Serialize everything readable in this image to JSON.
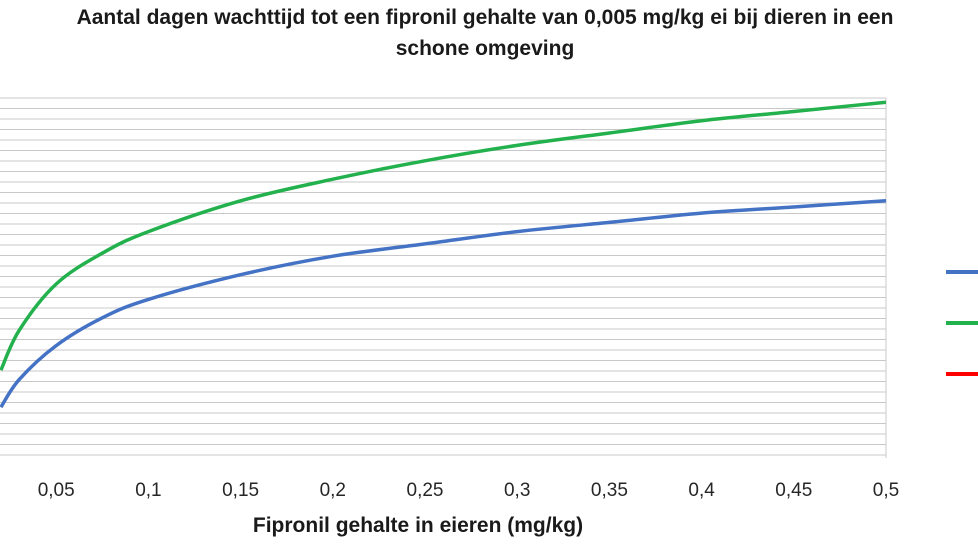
{
  "chart_data": {
    "type": "line",
    "title_line1": "Aantal dagen wachttijd tot een fipronil gehalte van 0,005 mg/kg ei bij dieren in een",
    "title_line2": "schone omgeving",
    "xlabel": "Fipronil gehalte in eieren (mg/kg)",
    "ylabel": "",
    "x_ticks": [
      "0,05",
      "0,1",
      "0,15",
      "0,2",
      "0,25",
      "0,3",
      "0,35",
      "0,4",
      "0,45",
      "0,5"
    ],
    "xlim": [
      0,
      0.5
    ],
    "grid": true,
    "legend_position": "right",
    "series": [
      {
        "color": "#4472c4",
        "x": [
          0.02,
          0.03,
          0.05,
          0.075,
          0.1,
          0.15,
          0.2,
          0.25,
          0.3,
          0.35,
          0.4,
          0.45,
          0.5
        ],
        "y": [
          0.23,
          0.32,
          0.43,
          0.52,
          0.58,
          0.66,
          0.72,
          0.76,
          0.8,
          0.83,
          0.86,
          0.88,
          0.9
        ]
      },
      {
        "color": "#22b14c",
        "x": [
          0.02,
          0.03,
          0.05,
          0.075,
          0.1,
          0.15,
          0.2,
          0.25,
          0.3,
          0.35,
          0.4,
          0.45,
          0.5
        ],
        "y": [
          0.35,
          0.48,
          0.63,
          0.73,
          0.8,
          0.9,
          0.97,
          1.03,
          1.08,
          1.12,
          1.16,
          1.19,
          1.22
        ]
      },
      {
        "color": "#ff0000",
        "x": [],
        "y": []
      }
    ]
  }
}
